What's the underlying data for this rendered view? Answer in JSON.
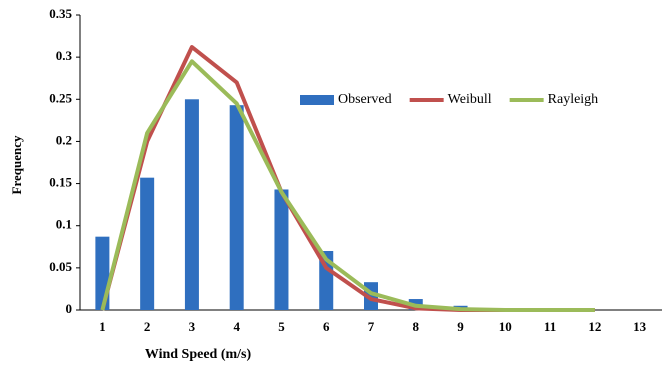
{
  "chart_data": {
    "type": "combo",
    "xlabel": "Wind Speed (m/s)",
    "ylabel": "Frequency",
    "categories": [
      1,
      2,
      3,
      4,
      5,
      6,
      7,
      8,
      9,
      10,
      11,
      12,
      13
    ],
    "ylim": [
      0,
      0.35
    ],
    "yticks": [
      0,
      0.05,
      0.1,
      0.15,
      0.2,
      0.25,
      0.3,
      0.35
    ],
    "grid": false,
    "legend": "top-center",
    "series": [
      {
        "name": "Observed",
        "color": "#2f6fbf",
        "mark": "bar",
        "values": [
          0.087,
          0.157,
          0.25,
          0.243,
          0.143,
          0.07,
          0.033,
          0.013,
          0.005,
          0.001,
          0,
          0,
          0
        ]
      },
      {
        "name": "Weibull",
        "color": "#c0504d",
        "mark": "line",
        "values": [
          0,
          0.2,
          0.312,
          0.27,
          0.14,
          0.05,
          0.013,
          0.002,
          0,
          0,
          0,
          0,
          null
        ]
      },
      {
        "name": "Rayleigh",
        "color": "#9bbb59",
        "mark": "line",
        "values": [
          0,
          0.21,
          0.295,
          0.245,
          0.14,
          0.06,
          0.02,
          0.005,
          0.001,
          0,
          0,
          0,
          null
        ]
      }
    ]
  }
}
